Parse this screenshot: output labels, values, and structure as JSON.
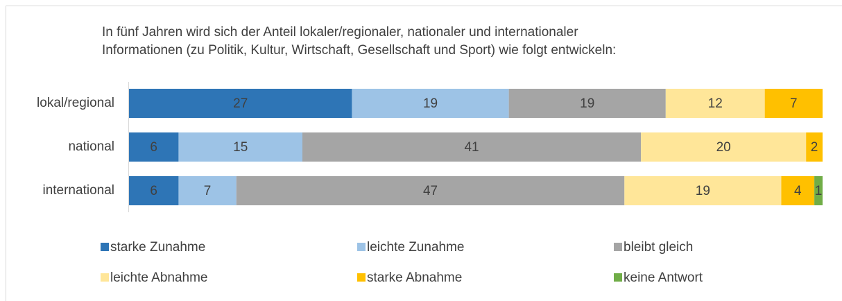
{
  "chart_data": {
    "type": "stacked_bar_horizontal",
    "title": [
      "In fünf Jahren wird sich der Anteil lokaler/regionaler, nationaler und internationaler",
      "Informationen (zu Politik, Kultur, Wirtschaft, Gesellschaft und Sport) wie folgt entwickeln:"
    ],
    "categories": [
      "lokal/regional",
      "national",
      "international"
    ],
    "series": [
      {
        "name": "starke Zunahme",
        "color": "#2e75b6",
        "values": [
          27,
          6,
          6
        ]
      },
      {
        "name": "leichte Zunahme",
        "color": "#9dc3e6",
        "values": [
          19,
          15,
          7
        ]
      },
      {
        "name": "bleibt gleich",
        "color": "#a5a5a5",
        "values": [
          19,
          41,
          47
        ]
      },
      {
        "name": "leichte Abnahme",
        "color": "#ffe699",
        "values": [
          12,
          20,
          19
        ]
      },
      {
        "name": "starke Abnahme",
        "color": "#ffc000",
        "values": [
          7,
          2,
          4
        ]
      },
      {
        "name": "keine Antwort",
        "color": "#70ad47",
        "values": [
          null,
          null,
          1
        ]
      }
    ]
  }
}
